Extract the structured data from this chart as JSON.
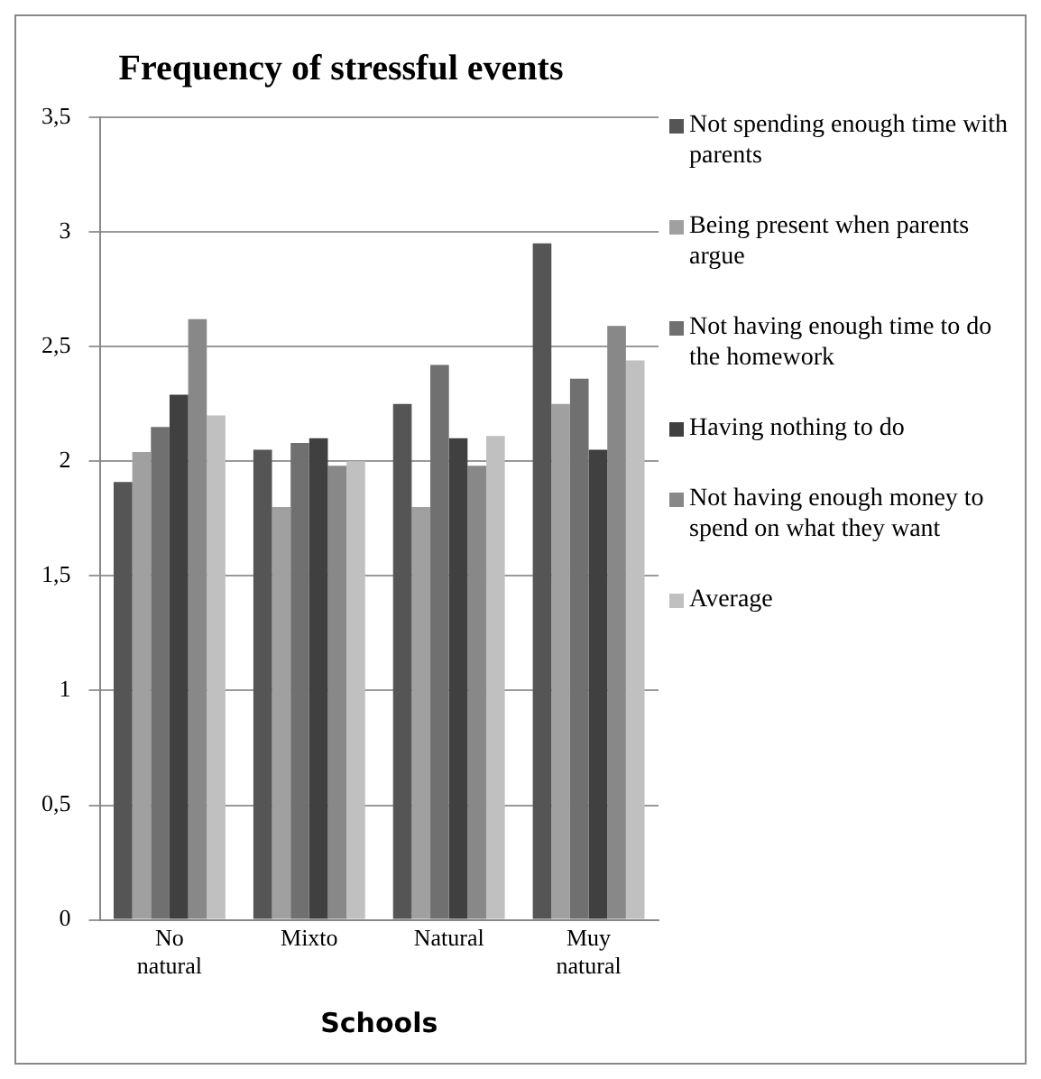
{
  "chart_data": {
    "type": "bar",
    "title": "Frequency of stressful events",
    "xlabel": "Schools",
    "categories": [
      "No natural",
      "Mixto",
      "Natural",
      "Muy natural"
    ],
    "series": [
      {
        "name": "Not spending enough time with parents",
        "color": "#555555",
        "values": [
          1.91,
          2.05,
          2.25,
          2.95
        ]
      },
      {
        "name": "Being present when parents argue",
        "color": "#a0a0a0",
        "values": [
          2.04,
          1.8,
          1.8,
          2.25
        ]
      },
      {
        "name": "Not having enough time to do the homework",
        "color": "#707070",
        "values": [
          2.15,
          2.08,
          2.42,
          2.36
        ]
      },
      {
        "name": "Having nothing to do",
        "color": "#404040",
        "values": [
          2.29,
          2.1,
          2.1,
          2.05
        ]
      },
      {
        "name": "Not having enough money to spend on what they want",
        "color": "#888888",
        "values": [
          2.62,
          1.98,
          1.98,
          2.59
        ]
      },
      {
        "name": "Average",
        "color": "#c0c0c0",
        "values": [
          2.2,
          2.0,
          2.11,
          2.44
        ]
      }
    ],
    "ylim": [
      0,
      3.5
    ],
    "yticks": [
      0,
      {
        "value": 0.5,
        "label": "0,5"
      },
      1,
      {
        "value": 1.5,
        "label": "1,5"
      },
      2,
      {
        "value": 2.5,
        "label": "2,5"
      },
      3,
      {
        "value": 3.5,
        "label": "3,5"
      }
    ],
    "grid": "y",
    "legend": "right"
  }
}
